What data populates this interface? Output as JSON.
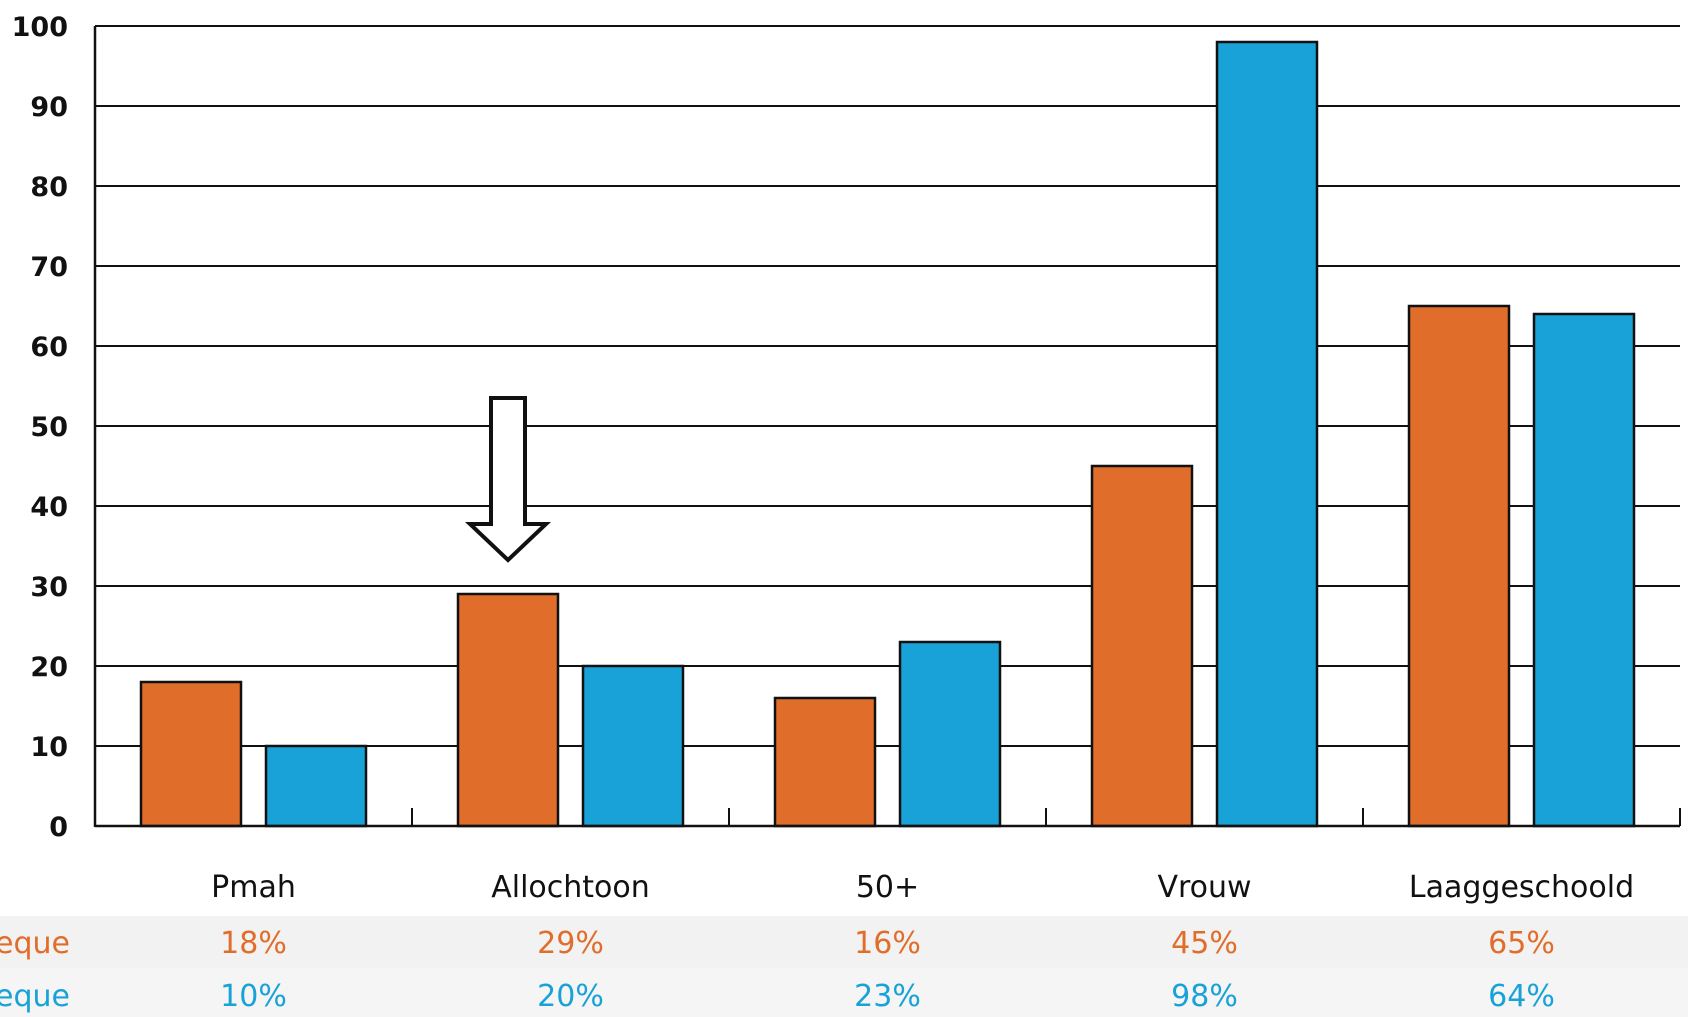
{
  "chart_data": {
    "type": "bar",
    "categories": [
      "Pmah",
      "Allochtoon",
      "50+",
      "Vrouw",
      "Laaggeschoold"
    ],
    "series": [
      {
        "name": "eque",
        "values": [
          18,
          29,
          16,
          45,
          65
        ],
        "labels": [
          "18%",
          "29%",
          "16%",
          "45%",
          "65%"
        ],
        "color": "#e06e2a"
      },
      {
        "name": "eque",
        "values": [
          10,
          20,
          23,
          98,
          64
        ],
        "labels": [
          "10%",
          "20%",
          "23%",
          "98%",
          "64%"
        ],
        "color": "#19a2d8"
      }
    ],
    "yticks": [
      "0",
      "10",
      "20",
      "30",
      "40",
      "50",
      "60",
      "70",
      "80",
      "90",
      "100"
    ],
    "ylim": [
      0,
      100
    ],
    "grid": true,
    "annotation": {
      "type": "arrow-down",
      "category": "Allochtoon"
    },
    "title": "",
    "xlabel": "",
    "ylabel": ""
  }
}
